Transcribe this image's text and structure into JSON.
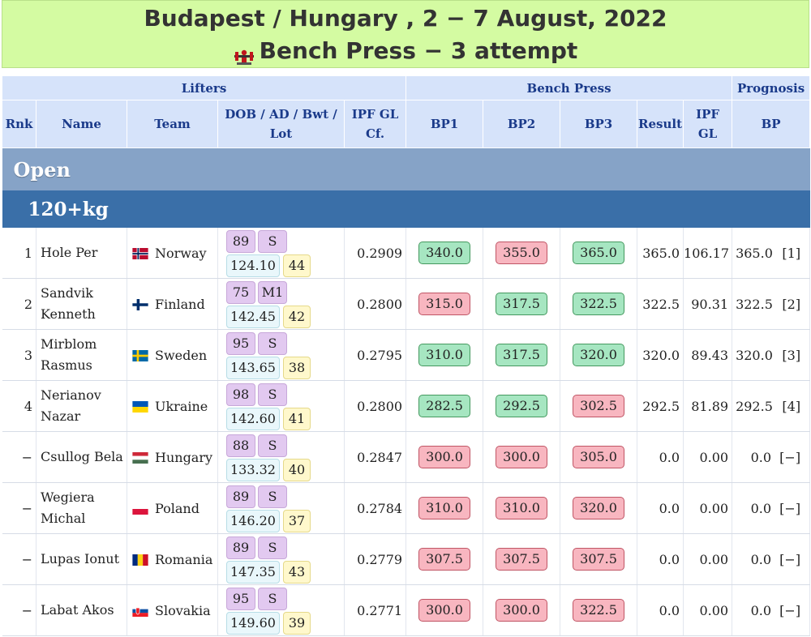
{
  "banner": {
    "line1": "Budapest / Hungary , 2 − 7 August, 2022",
    "line2": "Bench Press − 3 attempt",
    "icon": "bench-press-icon"
  },
  "header": {
    "group_lifters": "Lifters",
    "group_bench": "Bench Press",
    "group_prognosis": "Prognosis",
    "rnk": "Rnk",
    "name": "Name",
    "team": "Team",
    "dob_line1": "DOB / AD / Bwt /",
    "dob_line2": "Lot",
    "cf_line1": "IPF GL",
    "cf_line2": "Cf.",
    "bp1": "BP1",
    "bp2": "BP2",
    "bp3": "BP3",
    "result": "Result",
    "gl_line1": "IPF",
    "gl_line2": "GL",
    "prog_bp": "BP"
  },
  "division": "Open",
  "weight_class": "120+kg",
  "lifters": [
    {
      "rnk": "1",
      "name": "Hole Per",
      "team": "Norway",
      "flag": "norway",
      "dob": "89",
      "ad": "S",
      "bwt": "124.10",
      "lot": "44",
      "cf": "0.2909",
      "bp1": "340.0",
      "bp1_ok": true,
      "bp2": "355.0",
      "bp2_ok": false,
      "bp3": "365.0",
      "bp3_ok": true,
      "result": "365.0",
      "gl": "106.17",
      "prog": "365.0",
      "prog_rank": "[1]"
    },
    {
      "rnk": "2",
      "name": "Sandvik Kenneth",
      "team": "Finland",
      "flag": "finland",
      "dob": "75",
      "ad": "M1",
      "bwt": "142.45",
      "lot": "42",
      "cf": "0.2800",
      "bp1": "315.0",
      "bp1_ok": false,
      "bp2": "317.5",
      "bp2_ok": true,
      "bp3": "322.5",
      "bp3_ok": true,
      "result": "322.5",
      "gl": "90.31",
      "prog": "322.5",
      "prog_rank": "[2]"
    },
    {
      "rnk": "3",
      "name": "Mirblom Rasmus",
      "team": "Sweden",
      "flag": "sweden",
      "dob": "95",
      "ad": "S",
      "bwt": "143.65",
      "lot": "38",
      "cf": "0.2795",
      "bp1": "310.0",
      "bp1_ok": true,
      "bp2": "317.5",
      "bp2_ok": true,
      "bp3": "320.0",
      "bp3_ok": true,
      "result": "320.0",
      "gl": "89.43",
      "prog": "320.0",
      "prog_rank": "[3]"
    },
    {
      "rnk": "4",
      "name": "Nerianov Nazar",
      "team": "Ukraine",
      "flag": "ukraine",
      "dob": "98",
      "ad": "S",
      "bwt": "142.60",
      "lot": "41",
      "cf": "0.2800",
      "bp1": "282.5",
      "bp1_ok": true,
      "bp2": "292.5",
      "bp2_ok": true,
      "bp3": "302.5",
      "bp3_ok": false,
      "result": "292.5",
      "gl": "81.89",
      "prog": "292.5",
      "prog_rank": "[4]"
    },
    {
      "rnk": "−",
      "name": "Csullog Bela",
      "team": "Hungary",
      "flag": "hungary",
      "dob": "88",
      "ad": "S",
      "bwt": "133.32",
      "lot": "40",
      "cf": "0.2847",
      "bp1": "300.0",
      "bp1_ok": false,
      "bp2": "300.0",
      "bp2_ok": false,
      "bp3": "305.0",
      "bp3_ok": false,
      "result": "0.0",
      "gl": "0.00",
      "prog": "0.0",
      "prog_rank": "[−]"
    },
    {
      "rnk": "−",
      "name": "Wegiera Michal",
      "team": "Poland",
      "flag": "poland",
      "dob": "89",
      "ad": "S",
      "bwt": "146.20",
      "lot": "37",
      "cf": "0.2784",
      "bp1": "310.0",
      "bp1_ok": false,
      "bp2": "310.0",
      "bp2_ok": false,
      "bp3": "320.0",
      "bp3_ok": false,
      "result": "0.0",
      "gl": "0.00",
      "prog": "0.0",
      "prog_rank": "[−]"
    },
    {
      "rnk": "−",
      "name": "Lupas Ionut",
      "team": "Romania",
      "flag": "romania",
      "dob": "89",
      "ad": "S",
      "bwt": "147.35",
      "lot": "43",
      "cf": "0.2779",
      "bp1": "307.5",
      "bp1_ok": false,
      "bp2": "307.5",
      "bp2_ok": false,
      "bp3": "307.5",
      "bp3_ok": false,
      "result": "0.0",
      "gl": "0.00",
      "prog": "0.0",
      "prog_rank": "[−]"
    },
    {
      "rnk": "−",
      "name": "Labat Akos",
      "team": "Slovakia",
      "flag": "slovakia",
      "dob": "95",
      "ad": "S",
      "bwt": "149.60",
      "lot": "39",
      "cf": "0.2771",
      "bp1": "300.0",
      "bp1_ok": false,
      "bp2": "300.0",
      "bp2_ok": false,
      "bp3": "322.5",
      "bp3_ok": false,
      "result": "0.0",
      "gl": "0.00",
      "prog": "0.0",
      "prog_rank": "[−]"
    }
  ]
}
